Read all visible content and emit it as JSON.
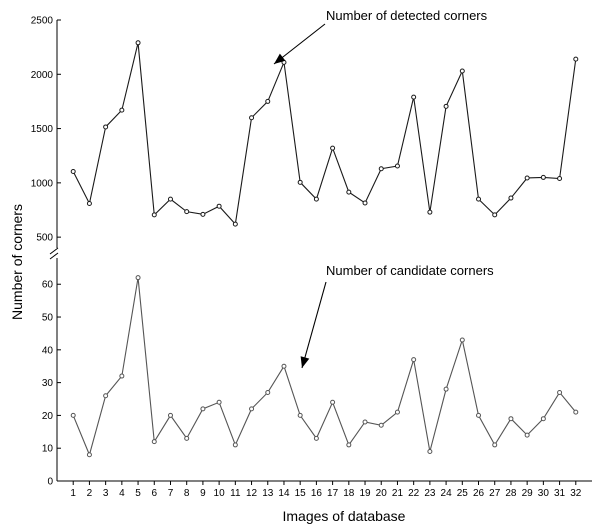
{
  "chart_data": {
    "type": "line",
    "xlabel": "Images of database",
    "ylabel": "Number of corners",
    "x": [
      1,
      2,
      3,
      4,
      5,
      6,
      7,
      8,
      9,
      10,
      11,
      12,
      13,
      14,
      15,
      16,
      17,
      18,
      19,
      20,
      21,
      22,
      23,
      24,
      25,
      26,
      27,
      28,
      29,
      30,
      31,
      32
    ],
    "x_ticks": [
      "1",
      "2",
      "3",
      "4",
      "5",
      "6",
      "7",
      "8",
      "9",
      "10",
      "11",
      "12",
      "13",
      "14",
      "15",
      "16",
      "17",
      "18",
      "19",
      "20",
      "21",
      "22",
      "23",
      "24",
      "25",
      "26",
      "27",
      "28",
      "29",
      "30",
      "31",
      "32"
    ],
    "x_range": [
      0,
      33
    ],
    "grid": false,
    "legend": "none",
    "panels": [
      {
        "id": "detected",
        "ylim": [
          400,
          2500
        ],
        "y_ticks": [
          500,
          1000,
          1500,
          2000,
          2500
        ],
        "y_tick_labels": [
          "500",
          "1000",
          "1500",
          "2000",
          "2500"
        ],
        "annotation": "Number of detected corners",
        "color": "#1a1a1a",
        "series": [
          {
            "values": [
              1105,
              810,
              1515,
              1670,
              2290,
              705,
              850,
              735,
              710,
              785,
              620,
              1600,
              1750,
              2110,
              1005,
              850,
              1320,
              915,
              815,
              1130,
              1155,
              1790,
              730,
              1705,
              2030,
              850,
              705,
              860,
              1045,
              1050,
              1040,
              2140
            ]
          }
        ]
      },
      {
        "id": "candidate",
        "ylim": [
          0,
          68
        ],
        "y_ticks": [
          0,
          10,
          20,
          30,
          40,
          50,
          60
        ],
        "y_tick_labels": [
          "0",
          "10",
          "20",
          "30",
          "40",
          "50",
          "60"
        ],
        "annotation": "Number of candidate corners",
        "color": "#555555",
        "series": [
          {
            "values": [
              20,
              8,
              26,
              32,
              62,
              12,
              20,
              13,
              22,
              24,
              11,
              22,
              27,
              35,
              20,
              13,
              24,
              11,
              18,
              17,
              21,
              37,
              9,
              28,
              43,
              20,
              11,
              19,
              14,
              19,
              27,
              21
            ]
          }
        ]
      }
    ],
    "axis_break_marker": "//"
  }
}
